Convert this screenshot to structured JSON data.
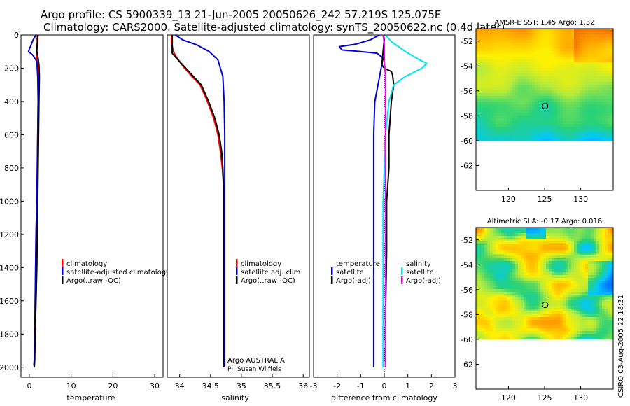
{
  "header": {
    "line1": "Argo profile: CS 5900339_13 21-Jun-2005 20050626_242 57.219S 125.075E",
    "line2": "Climatology: CARS2000. Satellite-adjusted climatology: synTS_20050622.nc (0.4d later)"
  },
  "depth_axis": {
    "ticks": [
      0,
      200,
      400,
      600,
      800,
      1000,
      1200,
      1400,
      1600,
      1800,
      2000
    ],
    "ylim": [
      0,
      2060
    ]
  },
  "chart_data": [
    {
      "type": "line",
      "id": "temperature",
      "xlabel": "temperature",
      "xlim": [
        -2,
        32
      ],
      "xticks": [
        0,
        10,
        20,
        30
      ],
      "legend": [
        "climatology",
        "satellite-adjusted climatology",
        "Argo(..raw -QC)"
      ],
      "series": [
        {
          "name": "climatology",
          "color": "#ff0000",
          "x": [
            2.1,
            2.0,
            1.9,
            1.7,
            1.8,
            2.0,
            2.1,
            2.1,
            2.0,
            1.9,
            1.8,
            1.6,
            1.5,
            1.4,
            1.3,
            1.2,
            1.1
          ],
          "y": [
            0,
            20,
            50,
            100,
            140,
            180,
            250,
            400,
            600,
            800,
            1000,
            1200,
            1400,
            1600,
            1800,
            1950,
            1990
          ]
        },
        {
          "name": "satellite-adjusted climatology",
          "color": "#0000dd",
          "x": [
            1.6,
            0.9,
            0.1,
            -0.2,
            0.8,
            1.8,
            2.0,
            2.1,
            2.0,
            1.9,
            1.8,
            1.6,
            1.5,
            1.4,
            1.3,
            1.2,
            1.1
          ],
          "y": [
            0,
            30,
            80,
            100,
            120,
            160,
            250,
            400,
            600,
            800,
            1000,
            1200,
            1400,
            1600,
            1800,
            1950,
            1990
          ]
        },
        {
          "name": "Argo(..raw -QC)",
          "color": "#000000",
          "x": [
            2.0,
            1.9,
            1.9,
            1.8,
            2.1,
            2.3,
            2.4,
            2.3,
            2.2,
            2.1,
            2.0,
            1.9,
            1.8,
            1.6,
            1.4,
            1.3,
            1.2
          ],
          "y": [
            0,
            20,
            50,
            100,
            140,
            180,
            250,
            400,
            600,
            800,
            1000,
            1200,
            1400,
            1600,
            1800,
            1950,
            2000
          ]
        }
      ]
    },
    {
      "type": "line",
      "id": "salinity",
      "xlabel": "salinity",
      "xlim": [
        33.8,
        36.1
      ],
      "xticks": [
        34,
        34.5,
        35,
        35.5,
        36
      ],
      "ticklabels": [
        "34",
        "34.5",
        "35",
        "35.5",
        "36"
      ],
      "legend": [
        "climatology",
        "satellite adj. clim.",
        "Argo(..raw -QC)"
      ],
      "series": [
        {
          "name": "climatology",
          "color": "#ff0000",
          "x": [
            33.87,
            33.87,
            33.9,
            33.96,
            34.08,
            34.2,
            34.33,
            34.45,
            34.55,
            34.62,
            34.66,
            34.69,
            34.71,
            34.72,
            34.72,
            34.72,
            34.72
          ],
          "y": [
            0,
            50,
            100,
            140,
            200,
            250,
            300,
            400,
            500,
            600,
            700,
            800,
            900,
            1000,
            1500,
            1900,
            2000
          ]
        },
        {
          "name": "satellite adj. clim.",
          "color": "#0000dd",
          "x": [
            33.93,
            34.05,
            34.28,
            34.48,
            34.62,
            34.7,
            34.72,
            34.73,
            34.73,
            34.73,
            34.73,
            34.73
          ],
          "y": [
            0,
            30,
            60,
            100,
            150,
            250,
            400,
            600,
            800,
            1000,
            1500,
            2000
          ]
        },
        {
          "name": "Argo(..raw -QC)",
          "color": "#000000",
          "x": [
            33.88,
            33.88,
            33.88,
            33.95,
            34.05,
            34.2,
            34.35,
            34.47,
            34.57,
            34.64,
            34.68,
            34.7,
            34.71,
            34.71,
            34.71,
            34.71
          ],
          "y": [
            0,
            50,
            110,
            140,
            180,
            240,
            300,
            400,
            500,
            600,
            700,
            800,
            900,
            1000,
            1500,
            2000
          ]
        }
      ]
    },
    {
      "type": "line",
      "id": "difference",
      "xlabel": "difference from climatology",
      "xlim": [
        -3,
        3
      ],
      "xticks": [
        -3,
        -2,
        -1,
        0,
        1,
        2,
        3
      ],
      "ticklabels": [
        "-3",
        "-2",
        "-1",
        "0",
        "1",
        "2",
        "3"
      ],
      "legend_left": [
        "temperature",
        "satellite",
        "Argo(-adj)"
      ],
      "legend_right": [
        "salinity",
        "satellite",
        "Argo(-adj)"
      ],
      "series": [
        {
          "name": "temperature satellite",
          "color": "#0000dd",
          "x": [
            -0.2,
            -0.6,
            -1.2,
            -1.9,
            -1.8,
            -1.0,
            -0.3,
            -0.05,
            -0.4,
            -0.45,
            -0.45,
            -0.45,
            -0.45
          ],
          "y": [
            0,
            30,
            55,
            70,
            90,
            100,
            110,
            140,
            400,
            600,
            1000,
            1500,
            2000
          ]
        },
        {
          "name": "temperature Argo(-adj)",
          "color": "#000000",
          "x": [
            -0.05,
            0.0,
            -0.05,
            -0.1,
            0.0,
            0.3,
            0.35,
            0.4,
            0.3,
            0.2,
            0.2,
            0.1,
            0.1,
            0.05,
            0.05
          ],
          "y": [
            0,
            30,
            100,
            180,
            200,
            220,
            240,
            300,
            400,
            600,
            800,
            1000,
            1300,
            1700,
            2000
          ]
        },
        {
          "name": "salinity satellite",
          "color": "#00e5ee",
          "x": [
            0.05,
            0.3,
            0.9,
            1.5,
            1.8,
            1.6,
            0.9,
            0.4,
            0.2,
            0.05,
            0.0,
            -0.05,
            -0.05,
            -0.05
          ],
          "y": [
            0,
            40,
            100,
            150,
            170,
            200,
            250,
            300,
            400,
            600,
            800,
            1000,
            1500,
            2000
          ]
        },
        {
          "name": "salinity Argo(-adj)",
          "color": "#ff00ff",
          "x": [
            -0.05,
            0.0,
            0.0,
            0.05,
            0.05,
            0.05,
            0.05,
            0.05,
            0.05,
            0.05
          ],
          "y": [
            0,
            50,
            150,
            250,
            400,
            600,
            800,
            1000,
            1500,
            2000
          ]
        }
      ]
    },
    {
      "type": "heatmap",
      "id": "sst",
      "title": "AMSR-E SST: 1.45 Argo: 1.32",
      "xlim": [
        115.5,
        134.5
      ],
      "ylim": [
        -64,
        -51
      ],
      "xticks": [
        120,
        125,
        130
      ],
      "yticks": [
        -52,
        -54,
        -56,
        -58,
        -60,
        -62
      ],
      "data_ylim": [
        -60,
        -51
      ],
      "marker": {
        "lon": 125.075,
        "lat": -57.219
      }
    },
    {
      "type": "heatmap",
      "id": "sla",
      "title": "Altimetric SLA: -0.17 Argo: 0.016",
      "xlim": [
        115.5,
        134.5
      ],
      "ylim": [
        -64,
        -51
      ],
      "xticks": [
        120,
        125,
        130
      ],
      "yticks": [
        -52,
        -54,
        -56,
        -58,
        -60,
        -62
      ],
      "data_ylim": [
        -60,
        -51
      ],
      "marker": {
        "lon": 125.075,
        "lat": -57.219
      }
    }
  ],
  "annotations": {
    "float_owner": "Argo AUSTRALIA",
    "pi": "PI: Susan Wijffels",
    "credit": "CSIRO 03-Aug-2005 22:18:31"
  }
}
